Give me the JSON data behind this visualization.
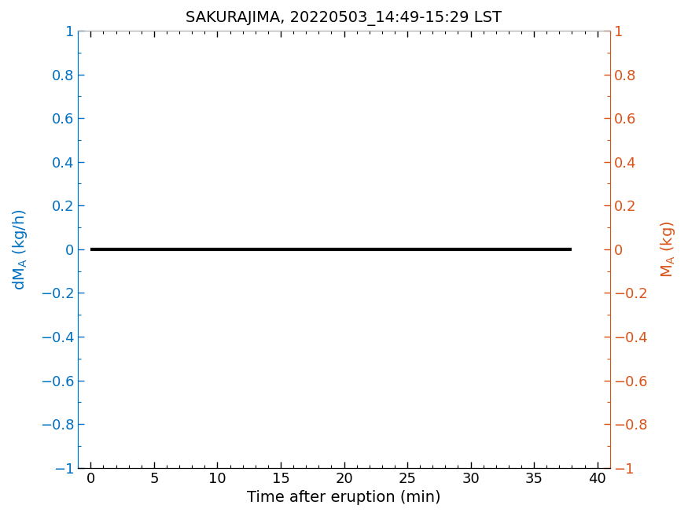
{
  "title": "SAKURAJIMA, 20220503_14:49-15:29 LST",
  "xlabel": "Time after eruption (min)",
  "xlim": [
    -1,
    41
  ],
  "ylim": [
    -1,
    1
  ],
  "xticks": [
    0,
    5,
    10,
    15,
    20,
    25,
    30,
    35,
    40
  ],
  "yticks": [
    -1.0,
    -0.8,
    -0.6,
    -0.4,
    -0.2,
    0.0,
    0.2,
    0.4,
    0.6,
    0.8,
    1.0
  ],
  "ytick_labels": [
    "−1",
    "−0.8",
    "−0.6",
    "−0.4",
    "−0.2",
    "0",
    "0.2",
    "0.4",
    "0.6",
    "0.8",
    "1"
  ],
  "line_x": [
    0,
    38
  ],
  "line_y": [
    0,
    0
  ],
  "line_color": "#000000",
  "line_width": 3.0,
  "left_axis_color": "#0070C0",
  "right_axis_color": "#D95319",
  "title_fontsize": 14,
  "label_fontsize": 14,
  "tick_fontsize": 13,
  "xlabel_fontsize": 14,
  "background_color": "#ffffff"
}
